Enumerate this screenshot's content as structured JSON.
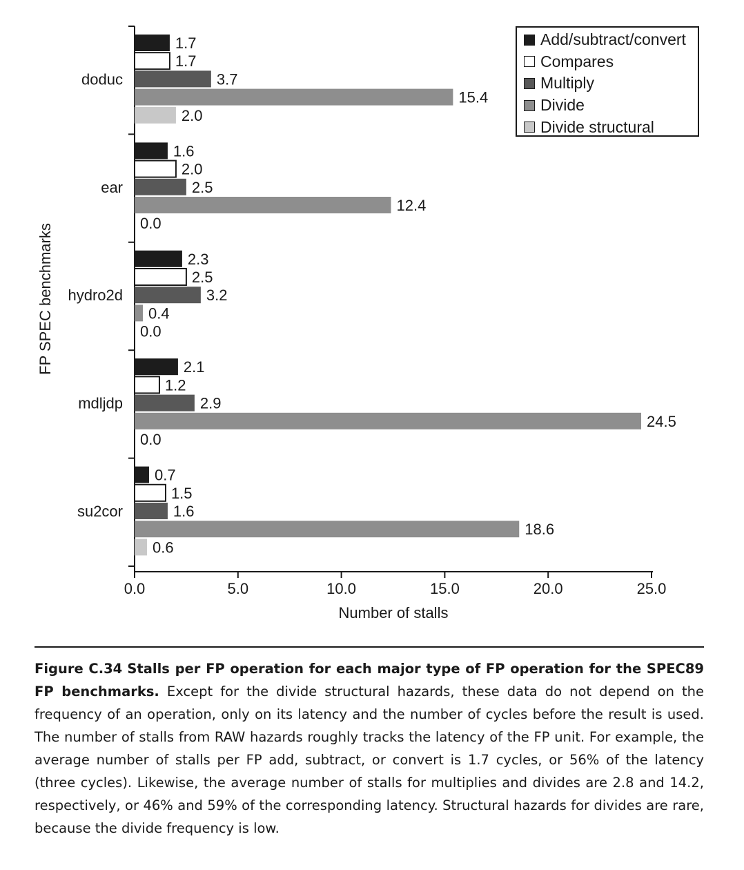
{
  "chart_data": {
    "type": "bar",
    "orientation": "horizontal",
    "ylabel": "FP SPEC benchmarks",
    "xlabel": "Number of stalls",
    "xlim": [
      0,
      25
    ],
    "xticks": [
      "0.0",
      "5.0",
      "10.0",
      "15.0",
      "20.0",
      "25.0"
    ],
    "categories": [
      "doduc",
      "ear",
      "hydro2d",
      "mdljdp",
      "su2cor"
    ],
    "series": [
      {
        "name": "Add/subtract/convert",
        "color": "#1c1c1c",
        "values": [
          1.7,
          1.6,
          2.3,
          2.1,
          0.7
        ],
        "labels": [
          "1.7",
          "1.6",
          "2.3",
          "2.1",
          "0.7"
        ]
      },
      {
        "name": "Compares",
        "color": "#ffffff",
        "values": [
          1.7,
          2.0,
          2.5,
          1.2,
          1.5
        ],
        "labels": [
          "1.7",
          "2.0",
          "2.5",
          "1.2",
          "1.5"
        ]
      },
      {
        "name": "Multiply",
        "color": "#585858",
        "values": [
          3.7,
          2.5,
          3.2,
          2.9,
          1.6
        ],
        "labels": [
          "3.7",
          "2.5",
          "3.2",
          "2.9",
          "1.6"
        ]
      },
      {
        "name": "Divide",
        "color": "#8e8e8e",
        "values": [
          15.4,
          12.4,
          0.4,
          24.5,
          18.6
        ],
        "labels": [
          "15.4",
          "12.4",
          "0.4",
          "24.5",
          "18.6"
        ]
      },
      {
        "name": "Divide structural",
        "color": "#c8c8c8",
        "values": [
          2.0,
          0.0,
          0.0,
          0.0,
          0.6
        ],
        "labels": [
          "2.0",
          "0.0",
          "0.0",
          "0.0",
          "0.6"
        ]
      }
    ],
    "grid": false,
    "legend": "top-right"
  },
  "caption": {
    "label": "Figure C.34",
    "title": "Stalls per FP operation for each major type of FP operation for the SPEC89 FP benchmarks.",
    "body": "Except for the divide structural hazards, these data do not depend on the frequency of an operation, only on its latency and the number of cycles before the result is used. The number of stalls from RAW hazards roughly tracks the latency of the FP unit. For example, the average number of stalls per FP add, subtract, or convert is 1.7 cycles, or 56% of the latency (three cycles). Likewise, the average number of stalls for multiplies and divides are 2.8 and 14.2, respectively, or 46% and 59% of the corresponding latency. Structural hazards for divides are rare, because the divide frequency is low."
  }
}
